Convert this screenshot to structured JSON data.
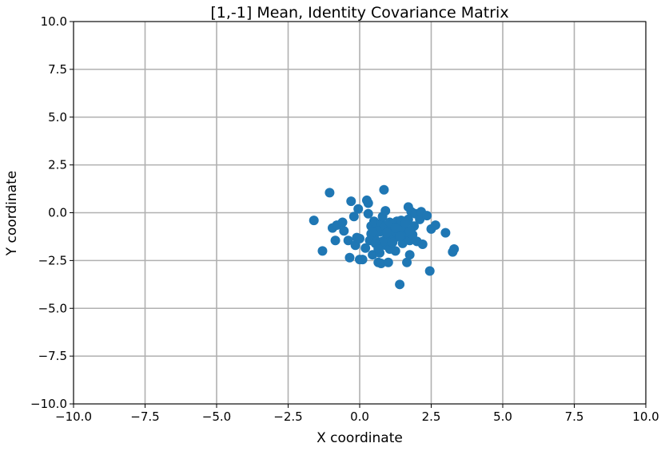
{
  "chart_data": {
    "type": "scatter",
    "title": "[1,-1] Mean, Identity Covariance Matrix",
    "xlabel": "X coordinate",
    "ylabel": "Y coordinate",
    "xlim": [
      -10,
      10
    ],
    "ylim": [
      -10,
      10
    ],
    "xticks": [
      -10,
      -7.5,
      -5,
      -2.5,
      0,
      2.5,
      5,
      7.5,
      10
    ],
    "yticks": [
      -10,
      -7.5,
      -5,
      -2.5,
      0,
      2.5,
      5,
      7.5,
      10
    ],
    "xtick_labels": [
      "−10.0",
      "−7.5",
      "−5.0",
      "−2.5",
      "0.0",
      "2.5",
      "5.0",
      "7.5",
      "10.0"
    ],
    "ytick_labels": [
      "−10.0",
      "−7.5",
      "−5.0",
      "−2.5",
      "0.0",
      "2.5",
      "5.0",
      "7.5",
      "10.0"
    ],
    "grid": true,
    "colors": {
      "points": "#1f77b4",
      "grid": "#b0b0b0",
      "axes": "#000000"
    },
    "series": [
      {
        "x": [
          -1.6,
          -1.05,
          -1.3,
          -0.95,
          -0.85,
          -0.8,
          -0.6,
          -0.55,
          -0.4,
          -0.3,
          -0.35,
          -0.2,
          -0.15,
          -0.1,
          -0.05,
          0.0,
          0.0,
          0.1,
          0.2,
          0.25,
          0.3,
          0.3,
          0.35,
          0.4,
          0.4,
          0.45,
          0.5,
          0.5,
          0.55,
          0.6,
          0.65,
          0.7,
          0.7,
          0.75,
          0.75,
          0.8,
          0.85,
          0.85,
          0.9,
          0.9,
          0.95,
          1.0,
          1.0,
          1.05,
          1.1,
          1.15,
          1.2,
          1.25,
          1.3,
          1.3,
          1.35,
          1.4,
          1.45,
          1.5,
          1.5,
          1.55,
          1.6,
          1.65,
          1.7,
          1.7,
          1.75,
          1.75,
          1.8,
          1.85,
          1.9,
          1.95,
          2.0,
          2.1,
          2.15,
          2.2,
          2.35,
          2.45,
          2.5,
          2.65,
          3.0,
          3.25,
          3.3,
          0.6,
          0.8,
          1.05,
          1.25,
          1.45,
          1.6,
          0.55,
          0.65,
          0.95,
          1.15,
          1.4,
          1.75,
          0.45
        ],
        "y": [
          -0.4,
          1.05,
          -2.0,
          -0.8,
          -1.45,
          -0.65,
          -0.5,
          -0.95,
          -1.45,
          0.6,
          -2.35,
          -0.2,
          -1.7,
          -1.3,
          0.2,
          -1.35,
          -2.45,
          -2.45,
          -1.85,
          0.65,
          0.5,
          -0.05,
          -1.45,
          -0.7,
          -1.1,
          -2.2,
          -0.45,
          -1.25,
          -0.85,
          -1.5,
          -2.6,
          -2.1,
          -1.0,
          -2.65,
          -0.55,
          -0.2,
          1.2,
          -0.75,
          0.1,
          -1.7,
          -1.3,
          -2.6,
          -0.9,
          -0.5,
          -1.15,
          -0.6,
          -1.35,
          -2.0,
          -0.45,
          -1.05,
          -0.7,
          -3.75,
          -0.4,
          -1.0,
          -1.6,
          -0.85,
          -1.25,
          -2.6,
          0.3,
          -0.35,
          -1.45,
          -2.2,
          0.05,
          -1.15,
          -0.7,
          -0.05,
          -1.5,
          -0.35,
          0.05,
          -1.65,
          -0.15,
          -3.05,
          -0.85,
          -0.65,
          -1.05,
          -2.05,
          -1.9,
          -0.95,
          -1.5,
          -1.9,
          -0.8,
          -1.2,
          -0.55,
          -1.6,
          -1.9,
          -1.05,
          -1.55,
          -1.25,
          -0.95,
          -1.0
        ]
      }
    ]
  }
}
